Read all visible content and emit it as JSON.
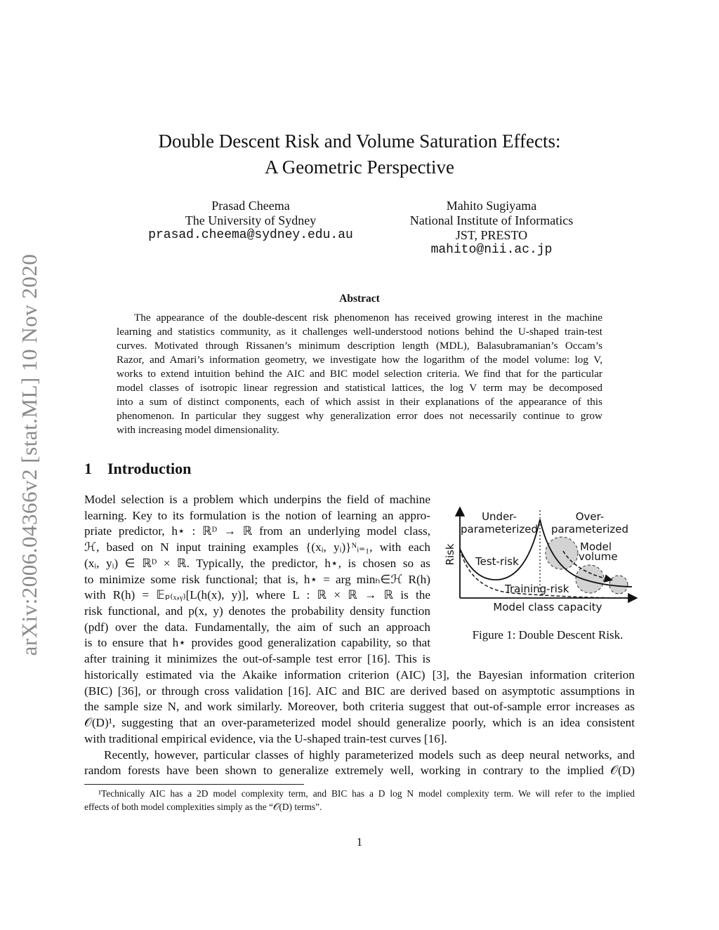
{
  "arxiv_id": "arXiv:2006.04366v2  [stat.ML]  10 Nov 2020",
  "title": [
    "Double Descent Risk and Volume Saturation Effects:",
    "A Geometric Perspective"
  ],
  "authors": [
    {
      "name": "Prasad Cheema",
      "affiliation": [
        "The University of Sydney"
      ],
      "email": "prasad.cheema@sydney.edu.au"
    },
    {
      "name": "Mahito Sugiyama",
      "affiliation": [
        "National Institute of Informatics",
        "JST, PRESTO"
      ],
      "email": "mahito@nii.ac.jp"
    }
  ],
  "abstract": {
    "heading": "Abstract",
    "lines": [
      "The appearance of the double-descent risk phenomenon has received growing interest in the machine",
      "learning and statistics community, as it challenges well-understood notions behind the U-shaped train-test",
      "curves. Motivated through Rissanen’s minimum description length (MDL), Balasubramanian’s Occam’s",
      "Razor, and Amari’s information geometry, we investigate how the logarithm of the model volume: log V,",
      "works to extend intuition behind the AIC and BIC model selection criteria. We find that for the particular",
      "model classes of isotropic linear regression and statistical lattices, the log V term may be decomposed",
      "into a sum of distinct components, each of which assist in their explanations of the appearance of this",
      "phenomenon. In particular they suggest why generalization error does not necessarily continue to grow",
      "with increasing model dimensionality."
    ]
  },
  "section": {
    "number": "1",
    "title": "Introduction"
  },
  "intro_narrow_lines": [
    "Model selection is a problem which underpins the field of machine",
    "learning. Key to its formulation is the notion of learning an appro-",
    "priate predictor, h⋆ : ℝᴰ → ℝ from an underlying model class,",
    "ℋ, based on N input training examples {(xᵢ, yᵢ)}ᴺᵢ₌₁, with each",
    "(xᵢ, yᵢ) ∈ ℝᴰ × ℝ. Typically, the predictor, h⋆, is chosen so as",
    "to minimize some risk functional; that is, h⋆ = arg minₕ∈ℋ R(h)",
    "with R(h) = 𝔼ₚ₍ₓ,ᵧ₎[L(h(x), y)], where L : ℝ × ℝ → ℝ is the",
    "risk functional, and p(x, y) denotes the probability density function",
    "(pdf) over the data. Fundamentally, the aim of such an approach",
    "is to ensure that h⋆ provides good generalization capability, so that",
    "after training it minimizes the out-of-sample test error [16]. This is"
  ],
  "intro_wide_lines": [
    "historically estimated via the Akaike information criterion (AIC) [3], the Bayesian information criterion",
    "(BIC) [36], or through cross validation [16]. AIC and BIC are derived based on asymptotic assumptions in",
    "the sample size N, and work similarly. Moreover, both criteria suggest that out-of-sample error increases as",
    "𝒪(D)¹, suggesting that an over-parameterized model should generalize poorly, which is an idea consistent",
    "with traditional empirical evidence, via the U-shaped train-test curves [16].",
    "Recently, however, particular classes of highly parameterized models such as deep neural networks, and",
    "random forests have been shown to generalize extremely well, working in contrary to the implied 𝒪(D)"
  ],
  "footnote_lines": [
    "¹Technically AIC has a 2D model complexity term, and BIC has a D log N model complexity term. We will refer to the implied",
    "effects of both model complexities simply as the “𝒪(D) terms”."
  ],
  "page_number": "1",
  "figure": {
    "caption": "Figure 1: Double Descent Risk.",
    "labels": {
      "under_1": "Under-",
      "under_2": "parameterized",
      "over_1": "Over-",
      "over_2": "parameterized",
      "volume_1": "Model",
      "volume_2": "volume",
      "test": "Test-risk",
      "train": "Training-risk",
      "xlabel": "Model class capacity",
      "ylabel": "Risk"
    },
    "colors": {
      "circle_fill": "#d3d3d3",
      "citation_box": "#00ff00"
    }
  }
}
